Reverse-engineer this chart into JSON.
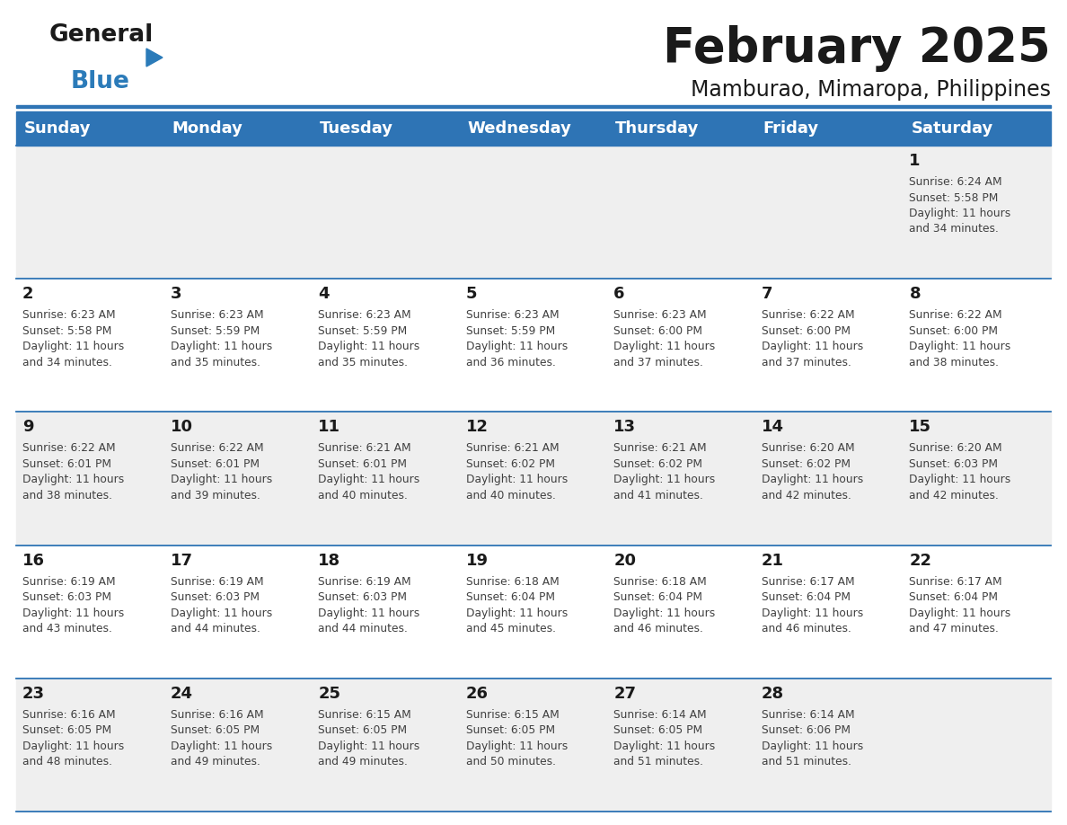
{
  "title": "February 2025",
  "subtitle": "Mamburao, Mimaropa, Philippines",
  "header_bg": "#2E74B5",
  "header_text_color": "#FFFFFF",
  "day_names": [
    "Sunday",
    "Monday",
    "Tuesday",
    "Wednesday",
    "Thursday",
    "Friday",
    "Saturday"
  ],
  "alt_row_bg": "#EFEFEF",
  "white_bg": "#FFFFFF",
  "separator_color": "#2E74B5",
  "cell_text_color": "#404040",
  "day_num_color": "#1a1a1a",
  "logo_general_color": "#1a1a1a",
  "logo_blue_color": "#2B7BB9",
  "calendar_data": [
    [
      null,
      null,
      null,
      null,
      null,
      null,
      1
    ],
    [
      2,
      3,
      4,
      5,
      6,
      7,
      8
    ],
    [
      9,
      10,
      11,
      12,
      13,
      14,
      15
    ],
    [
      16,
      17,
      18,
      19,
      20,
      21,
      22
    ],
    [
      23,
      24,
      25,
      26,
      27,
      28,
      null
    ]
  ],
  "sunrise_data": {
    "1": "6:24 AM",
    "2": "6:23 AM",
    "3": "6:23 AM",
    "4": "6:23 AM",
    "5": "6:23 AM",
    "6": "6:23 AM",
    "7": "6:22 AM",
    "8": "6:22 AM",
    "9": "6:22 AM",
    "10": "6:22 AM",
    "11": "6:21 AM",
    "12": "6:21 AM",
    "13": "6:21 AM",
    "14": "6:20 AM",
    "15": "6:20 AM",
    "16": "6:19 AM",
    "17": "6:19 AM",
    "18": "6:19 AM",
    "19": "6:18 AM",
    "20": "6:18 AM",
    "21": "6:17 AM",
    "22": "6:17 AM",
    "23": "6:16 AM",
    "24": "6:16 AM",
    "25": "6:15 AM",
    "26": "6:15 AM",
    "27": "6:14 AM",
    "28": "6:14 AM"
  },
  "sunset_data": {
    "1": "5:58 PM",
    "2": "5:58 PM",
    "3": "5:59 PM",
    "4": "5:59 PM",
    "5": "5:59 PM",
    "6": "6:00 PM",
    "7": "6:00 PM",
    "8": "6:00 PM",
    "9": "6:01 PM",
    "10": "6:01 PM",
    "11": "6:01 PM",
    "12": "6:02 PM",
    "13": "6:02 PM",
    "14": "6:02 PM",
    "15": "6:03 PM",
    "16": "6:03 PM",
    "17": "6:03 PM",
    "18": "6:03 PM",
    "19": "6:04 PM",
    "20": "6:04 PM",
    "21": "6:04 PM",
    "22": "6:04 PM",
    "23": "6:05 PM",
    "24": "6:05 PM",
    "25": "6:05 PM",
    "26": "6:05 PM",
    "27": "6:05 PM",
    "28": "6:06 PM"
  },
  "daylight_data": {
    "1": [
      "11 hours",
      "and 34 minutes."
    ],
    "2": [
      "11 hours",
      "and 34 minutes."
    ],
    "3": [
      "11 hours",
      "and 35 minutes."
    ],
    "4": [
      "11 hours",
      "and 35 minutes."
    ],
    "5": [
      "11 hours",
      "and 36 minutes."
    ],
    "6": [
      "11 hours",
      "and 37 minutes."
    ],
    "7": [
      "11 hours",
      "and 37 minutes."
    ],
    "8": [
      "11 hours",
      "and 38 minutes."
    ],
    "9": [
      "11 hours",
      "and 38 minutes."
    ],
    "10": [
      "11 hours",
      "and 39 minutes."
    ],
    "11": [
      "11 hours",
      "and 40 minutes."
    ],
    "12": [
      "11 hours",
      "and 40 minutes."
    ],
    "13": [
      "11 hours",
      "and 41 minutes."
    ],
    "14": [
      "11 hours",
      "and 42 minutes."
    ],
    "15": [
      "11 hours",
      "and 42 minutes."
    ],
    "16": [
      "11 hours",
      "and 43 minutes."
    ],
    "17": [
      "11 hours",
      "and 44 minutes."
    ],
    "18": [
      "11 hours",
      "and 44 minutes."
    ],
    "19": [
      "11 hours",
      "and 45 minutes."
    ],
    "20": [
      "11 hours",
      "and 46 minutes."
    ],
    "21": [
      "11 hours",
      "and 46 minutes."
    ],
    "22": [
      "11 hours",
      "and 47 minutes."
    ],
    "23": [
      "11 hours",
      "and 48 minutes."
    ],
    "24": [
      "11 hours",
      "and 49 minutes."
    ],
    "25": [
      "11 hours",
      "and 49 minutes."
    ],
    "26": [
      "11 hours",
      "and 50 minutes."
    ],
    "27": [
      "11 hours",
      "and 51 minutes."
    ],
    "28": [
      "11 hours",
      "and 51 minutes."
    ]
  },
  "fig_width": 11.88,
  "fig_height": 9.18,
  "dpi": 100
}
